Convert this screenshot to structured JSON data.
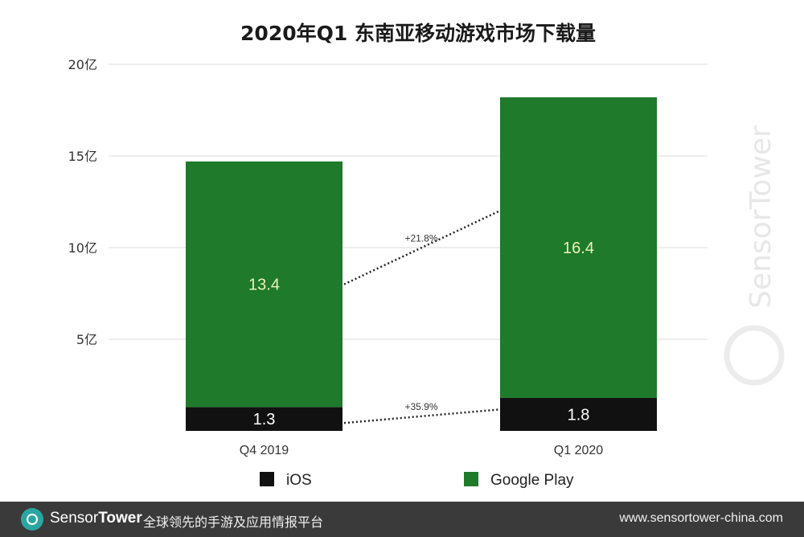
{
  "chart_data": {
    "type": "bar",
    "stacked": true,
    "title": "2020年Q1 东南亚移动游戏市场下载量",
    "categories": [
      "Q4  2019",
      "Q1 2020"
    ],
    "series": [
      {
        "name": "iOS",
        "values": [
          1.3,
          1.8
        ],
        "color": "#111111",
        "label_color": "#ffffff"
      },
      {
        "name": "Google Play",
        "values": [
          13.4,
          16.4
        ],
        "color": "#1f7a2b",
        "label_color": "#eef2b8"
      }
    ],
    "data_labels": {
      "iOS": [
        "1.3",
        "1.8"
      ],
      "Google Play": [
        "13.4",
        "16.4"
      ]
    },
    "y_ticks": [
      {
        "value": 5,
        "label": "5亿"
      },
      {
        "value": 10,
        "label": "10亿"
      },
      {
        "value": 15,
        "label": "15亿"
      },
      {
        "value": 20,
        "label": "20亿"
      }
    ],
    "ylim": [
      0,
      20
    ],
    "grid": true,
    "legend_position": "bottom",
    "annotations": [
      {
        "series": "Google Play",
        "text": "+21.8%"
      },
      {
        "series": "iOS",
        "text": "+35.9%"
      }
    ]
  },
  "watermark": "SensorTower",
  "footer": {
    "brand_sensor": "Sensor",
    "brand_tower": "Tower",
    "tagline": "全球领先的手游及应用情报平台",
    "url": "www.sensortower-china.com"
  }
}
